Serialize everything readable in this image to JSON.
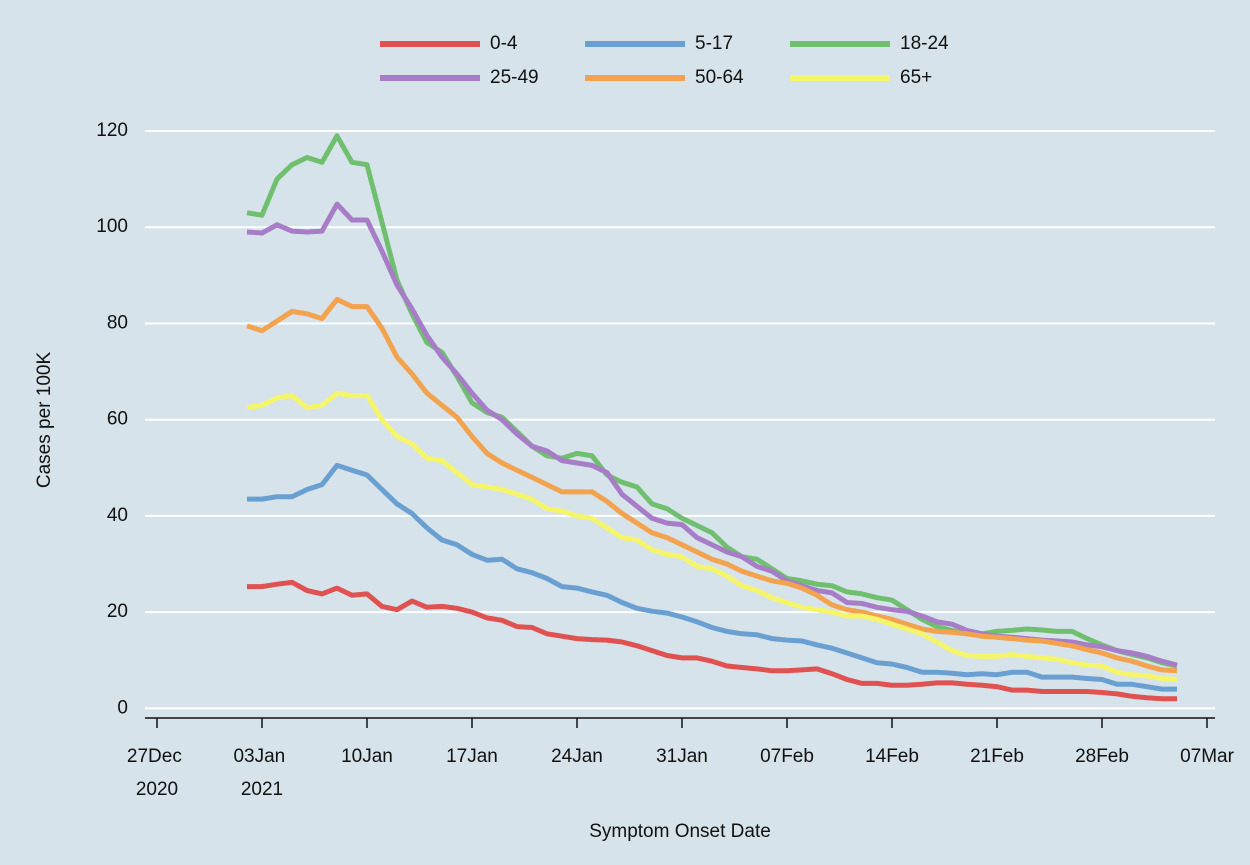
{
  "chart_data": {
    "type": "line",
    "x_label": "Symptom Onset Date",
    "y_label": "Cases per 100K",
    "x": [
      "2021-01-02",
      "2021-01-03",
      "2021-01-04",
      "2021-01-05",
      "2021-01-06",
      "2021-01-07",
      "2021-01-08",
      "2021-01-09",
      "2021-01-10",
      "2021-01-11",
      "2021-01-12",
      "2021-01-13",
      "2021-01-14",
      "2021-01-15",
      "2021-01-16",
      "2021-01-17",
      "2021-01-18",
      "2021-01-19",
      "2021-01-20",
      "2021-01-21",
      "2021-01-22",
      "2021-01-23",
      "2021-01-24",
      "2021-01-25",
      "2021-01-26",
      "2021-01-27",
      "2021-01-28",
      "2021-01-29",
      "2021-01-30",
      "2021-01-31",
      "2021-02-01",
      "2021-02-02",
      "2021-02-03",
      "2021-02-04",
      "2021-02-05",
      "2021-02-06",
      "2021-02-07",
      "2021-02-08",
      "2021-02-09",
      "2021-02-10",
      "2021-02-11",
      "2021-02-12",
      "2021-02-13",
      "2021-02-14",
      "2021-02-15",
      "2021-02-16",
      "2021-02-17",
      "2021-02-18",
      "2021-02-19",
      "2021-02-20",
      "2021-02-21",
      "2021-02-22",
      "2021-02-23",
      "2021-02-24",
      "2021-02-25",
      "2021-02-26",
      "2021-02-27",
      "2021-02-28",
      "2021-03-01",
      "2021-03-02",
      "2021-03-03",
      "2021-03-04",
      "2021-03-05"
    ],
    "series": [
      {
        "name": "0-4",
        "color": "#e05252",
        "values": [
          25.3,
          25.3,
          25.8,
          26.2,
          24.5,
          23.8,
          25,
          23.5,
          23.8,
          21.2,
          20.5,
          22.3,
          21,
          21.2,
          20.8,
          20,
          18.8,
          18.3,
          17,
          16.8,
          15.5,
          15,
          14.5,
          14.3,
          14.2,
          13.8,
          13,
          12,
          11,
          10.5,
          10.5,
          9.8,
          8.8,
          8.5,
          8.2,
          7.8,
          7.8,
          8,
          8.2,
          7.2,
          6,
          5.2,
          5.2,
          4.8,
          4.8,
          5,
          5.3,
          5.3,
          5,
          4.8,
          4.5,
          3.8,
          3.8,
          3.5,
          3.5,
          3.5,
          3.5,
          3.3,
          3,
          2.5,
          2.2,
          2,
          2
        ]
      },
      {
        "name": "5-17",
        "color": "#6a9fd2",
        "values": [
          43.5,
          43.5,
          44,
          44,
          45.5,
          46.5,
          50.5,
          49.5,
          48.5,
          45.5,
          42.5,
          40.5,
          37.5,
          35,
          34,
          32,
          30.8,
          31,
          29,
          28.2,
          27,
          25.3,
          25,
          24.2,
          23.5,
          22,
          20.8,
          20.2,
          19.8,
          19,
          18,
          16.8,
          16,
          15.5,
          15.3,
          14.5,
          14.2,
          14,
          13.2,
          12.5,
          11.5,
          10.5,
          9.5,
          9.2,
          8.5,
          7.5,
          7.5,
          7.3,
          7,
          7.2,
          7,
          7.5,
          7.5,
          6.5,
          6.5,
          6.5,
          6.2,
          6,
          5,
          5,
          4.5,
          4,
          4
        ]
      },
      {
        "name": "18-24",
        "color": "#6fbf6f",
        "values": [
          103,
          102.5,
          110,
          113,
          114.5,
          113.5,
          119,
          113.5,
          113,
          101,
          89,
          82,
          76,
          74,
          69,
          63.5,
          61.5,
          60.5,
          57.5,
          54.5,
          52.5,
          52,
          53,
          52.5,
          48.5,
          47,
          46,
          42.5,
          41.5,
          39.5,
          38,
          36.5,
          33.5,
          31.5,
          31,
          29,
          27,
          26.5,
          25.8,
          25.5,
          24.2,
          23.8,
          23,
          22.5,
          20.5,
          18.5,
          17,
          16.2,
          15.5,
          15.5,
          16,
          16.2,
          16.5,
          16.3,
          16,
          16,
          14.5,
          13.2,
          12,
          11.2,
          10.5,
          9.5,
          8.8
        ]
      },
      {
        "name": "25-49",
        "color": "#a67dc6",
        "values": [
          99,
          98.8,
          100.5,
          99.2,
          99,
          99.2,
          104.8,
          101.5,
          101.5,
          95,
          88,
          83,
          77.5,
          73,
          69.5,
          65.5,
          62,
          60,
          57,
          54.5,
          53.5,
          51.5,
          51,
          50.5,
          49,
          44.5,
          42,
          39.5,
          38.5,
          38.2,
          35.5,
          34,
          32.5,
          31.5,
          29.5,
          28.5,
          26.5,
          25.5,
          24.5,
          24,
          22,
          21.8,
          21,
          20.5,
          20.2,
          19.2,
          18,
          17.5,
          16.2,
          15.5,
          15,
          14.8,
          14.5,
          14.2,
          14,
          13.8,
          13.2,
          12.8,
          12,
          11.5,
          10.8,
          9.8,
          9
        ]
      },
      {
        "name": "50-64",
        "color": "#f3a24e",
        "values": [
          79.5,
          78.5,
          80.5,
          82.5,
          82,
          81,
          85,
          83.5,
          83.5,
          79,
          73,
          69.5,
          65.5,
          63,
          60.5,
          56.5,
          53,
          51,
          49.5,
          48,
          46.5,
          45,
          45,
          45,
          43,
          40.5,
          38.5,
          36.5,
          35.5,
          34,
          32.5,
          31,
          30,
          28.5,
          27.5,
          26.5,
          26,
          25,
          23.5,
          21.5,
          20.5,
          20,
          19.2,
          18.5,
          17.5,
          16.5,
          16,
          15.8,
          15.5,
          15,
          14.8,
          14.5,
          14.2,
          14,
          13.5,
          13,
          12.2,
          11.5,
          10.5,
          9.8,
          8.8,
          8,
          7.8
        ]
      },
      {
        "name": "65+",
        "color": "#f5f56b",
        "values": [
          62.5,
          63,
          64.5,
          65,
          62.5,
          63,
          65.5,
          65,
          65,
          60,
          56.5,
          55,
          52,
          51.5,
          49,
          46.5,
          46,
          45.5,
          44.5,
          43.5,
          41.5,
          41,
          40,
          39.5,
          37.5,
          35.5,
          35,
          33,
          32,
          31.5,
          29.5,
          29,
          27.5,
          25.5,
          24.5,
          23,
          22,
          21,
          20.5,
          20,
          19.2,
          19.2,
          18.5,
          17.5,
          16.5,
          15.5,
          13.8,
          12,
          11,
          10.8,
          10.8,
          11.2,
          10.8,
          10.5,
          10.2,
          9.5,
          9,
          8.8,
          7.5,
          7,
          6.8,
          6.2,
          6
        ]
      }
    ],
    "xlim": [
      "2020-12-26",
      "2021-03-07"
    ],
    "xticks": [
      {
        "value": "2020-12-27",
        "label": "27Dec 2020"
      },
      {
        "value": "2021-01-03",
        "label": "03Jan 2021"
      },
      {
        "value": "2021-01-10",
        "label": "10Jan"
      },
      {
        "value": "2021-01-17",
        "label": "17Jan"
      },
      {
        "value": "2021-01-24",
        "label": "24Jan"
      },
      {
        "value": "2021-01-31",
        "label": "31Jan"
      },
      {
        "value": "2021-02-07",
        "label": "07Feb"
      },
      {
        "value": "2021-02-14",
        "label": "14Feb"
      },
      {
        "value": "2021-02-21",
        "label": "21Feb"
      },
      {
        "value": "2021-02-28",
        "label": "28Feb"
      },
      {
        "value": "2021-03-07",
        "label": "07Mar"
      }
    ],
    "ylim": [
      -2,
      120
    ],
    "yticks": [
      0,
      20,
      40,
      60,
      80,
      100,
      120
    ],
    "grid": true,
    "legend": "top"
  }
}
